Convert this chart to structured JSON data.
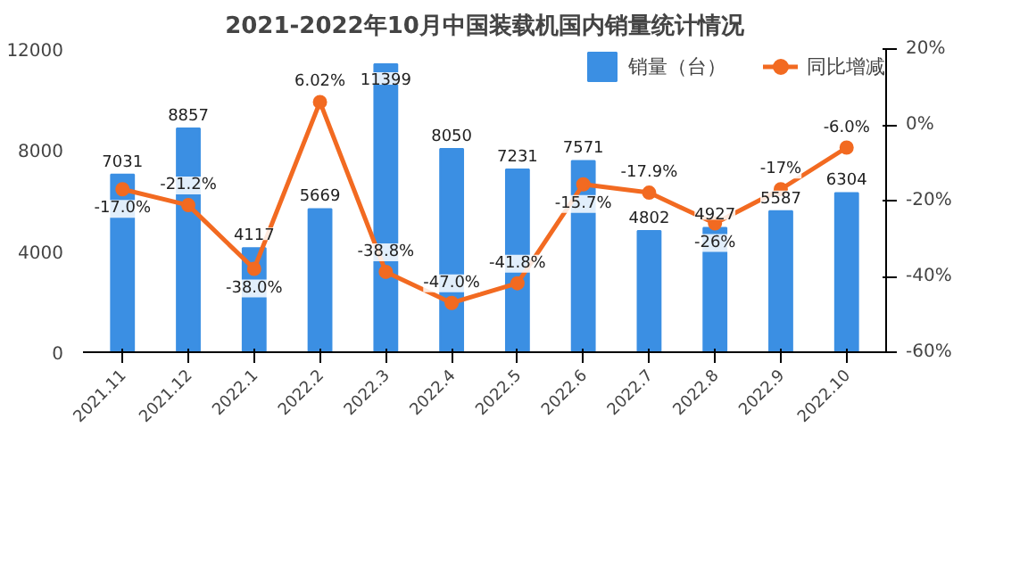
{
  "chart_data": {
    "type": "bar",
    "title": "2021-2022年10月中国装载机国内销量统计情况",
    "categories": [
      "2021.11",
      "2021.12",
      "2022.1",
      "2022.2",
      "2022.3",
      "2022.4",
      "2022.5",
      "2022.6",
      "2022.7",
      "2022.8",
      "2022.9",
      "2022.10"
    ],
    "series": [
      {
        "name": "销量（台）",
        "color": "#3b8fe3",
        "values": [
          7031,
          8857,
          4117,
          5669,
          11399,
          8050,
          7231,
          7571,
          4802,
          4927,
          5587,
          6304
        ],
        "value_labels": [
          "7031",
          "8857",
          "4117",
          "5669",
          "11399",
          "8050",
          "7231",
          "7571",
          "4802",
          "4927",
          "5587",
          "6304"
        ]
      },
      {
        "name": "同比增减",
        "type": "line",
        "axis": "y2",
        "color": "#f26a21",
        "values": [
          -17.0,
          -21.2,
          -38.0,
          6.02,
          -38.8,
          -47.0,
          -41.8,
          -15.7,
          -17.9,
          -26,
          -17,
          -6.0
        ],
        "value_labels": [
          "-17.0%",
          "-21.2%",
          "-38.0%",
          "6.02%",
          "-38.8%",
          "-47.0%",
          "-41.8%",
          "-15.7%",
          "-17.9%",
          "-26%",
          "-17%",
          "-6.0%"
        ]
      }
    ],
    "ylim": [
      0,
      12000
    ],
    "yticks": [
      0,
      4000,
      8000,
      12000
    ],
    "y2lim": [
      -60,
      20
    ],
    "y2ticks": [
      {
        "value": -60,
        "label": "-60%"
      },
      {
        "value": -40,
        "label": "-40%"
      },
      {
        "value": -20,
        "label": "-20%"
      },
      {
        "value": 0,
        "label": "0%"
      },
      {
        "value": 20,
        "label": "20%"
      }
    ],
    "legend": "top right",
    "grid": false,
    "marker": "circle",
    "line_style": "solid"
  }
}
